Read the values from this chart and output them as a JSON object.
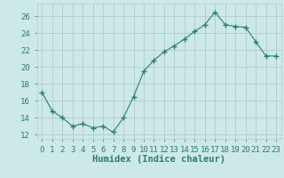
{
  "x": [
    0,
    1,
    2,
    3,
    4,
    5,
    6,
    7,
    8,
    9,
    10,
    11,
    12,
    13,
    14,
    15,
    16,
    17,
    18,
    19,
    20,
    21,
    22,
    23
  ],
  "y": [
    17.0,
    14.8,
    14.0,
    13.0,
    13.3,
    12.8,
    13.0,
    12.3,
    14.0,
    16.5,
    19.5,
    20.8,
    21.8,
    22.5,
    23.3,
    24.2,
    25.0,
    26.5,
    25.0,
    24.8,
    24.7,
    23.0,
    21.3,
    21.3
  ],
  "line_color": "#2e7d6e",
  "marker": "+",
  "marker_size": 4,
  "bg_color": "#cce8e8",
  "grid_color": "#b0cccc",
  "xlabel": "Humidex (Indice chaleur)",
  "xlim": [
    -0.5,
    23.5
  ],
  "ylim": [
    11.5,
    27.5
  ],
  "yticks": [
    12,
    14,
    16,
    18,
    20,
    22,
    24,
    26
  ],
  "xtick_labels": [
    "0",
    "1",
    "2",
    "3",
    "4",
    "5",
    "6",
    "7",
    "8",
    "9",
    "10",
    "11",
    "12",
    "13",
    "14",
    "15",
    "16",
    "17",
    "18",
    "19",
    "20",
    "21",
    "22",
    "23"
  ],
  "tick_color": "#2e7d6e",
  "label_color": "#2e7d6e",
  "font_size": 6.5,
  "xlabel_fontsize": 7.5
}
